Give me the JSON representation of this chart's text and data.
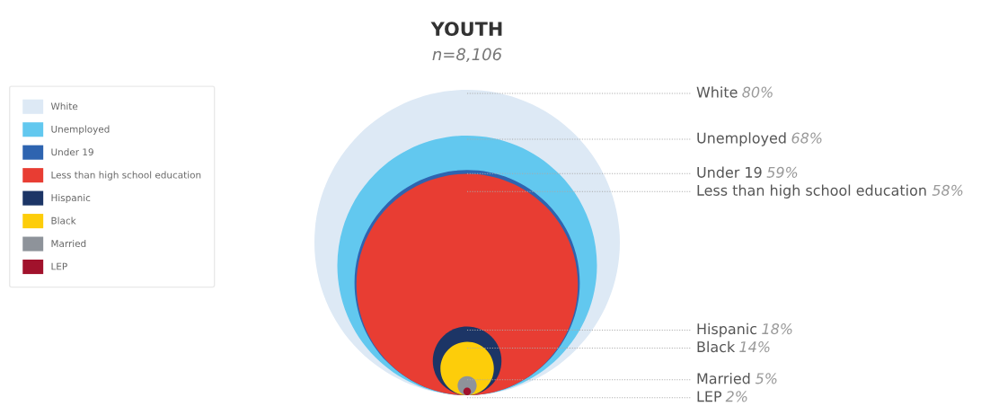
{
  "chart_data": {
    "type": "other",
    "title": "YOUTH",
    "subtitle": "n=8,106",
    "series": [
      {
        "name": "White",
        "color": "#dde9f5",
        "values": [
          80
        ],
        "value_labels": [
          "80%"
        ]
      },
      {
        "name": "Unemployed",
        "color": "#62c8ef",
        "values": [
          68
        ],
        "value_labels": [
          "68%"
        ]
      },
      {
        "name": "Under 19",
        "color": "#2e64b0",
        "values": [
          59
        ],
        "value_labels": [
          "59%"
        ]
      },
      {
        "name": "Less than high school education",
        "color": "#e83d33",
        "values": [
          58
        ],
        "value_labels": [
          "58%"
        ]
      },
      {
        "name": "Hispanic",
        "color": "#1c3566",
        "values": [
          18
        ],
        "value_labels": [
          "18%"
        ]
      },
      {
        "name": "Black",
        "color": "#fdcd0a",
        "values": [
          14
        ],
        "value_labels": [
          "14%"
        ]
      },
      {
        "name": "Married",
        "color": "#8e939a",
        "values": [
          5
        ],
        "value_labels": [
          "5%"
        ]
      },
      {
        "name": "LEP",
        "color": "#a1122c",
        "values": [
          2
        ],
        "value_labels": [
          "2%"
        ]
      }
    ],
    "legend": "left"
  }
}
